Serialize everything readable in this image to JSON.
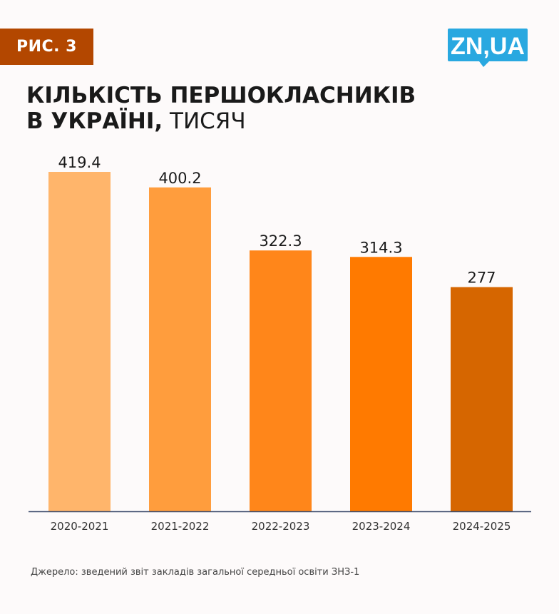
{
  "badge": {
    "label": "РИС. 3"
  },
  "logo": {
    "text": "ZN,UA",
    "color": "#29a8e0"
  },
  "title": {
    "line1": "КІЛЬКІСТЬ ПЕРШОКЛАСНИКІВ",
    "line2_bold": "В УКРАЇНІ,",
    "line2_light": " ТИСЯЧ"
  },
  "chart_data": {
    "type": "bar",
    "categories": [
      "2020-2021",
      "2021-2022",
      "2022-2023",
      "2023-2024",
      "2024-2025"
    ],
    "values": [
      419.4,
      400.2,
      322.3,
      314.3,
      277
    ],
    "labels": [
      "419.4",
      "400.2",
      "322.3",
      "314.3",
      "277"
    ],
    "colors": [
      "#ffb56b",
      "#ff9d3d",
      "#ff861a",
      "#ff7a00",
      "#d66600"
    ],
    "ylim": [
      0,
      440
    ],
    "axis_color": "#3b4a6b",
    "grid": false,
    "xlabel": "",
    "ylabel": ""
  },
  "source": {
    "text": "Джерело: зведений звіт закладів загальної середньої освіти ЗНЗ-1"
  }
}
